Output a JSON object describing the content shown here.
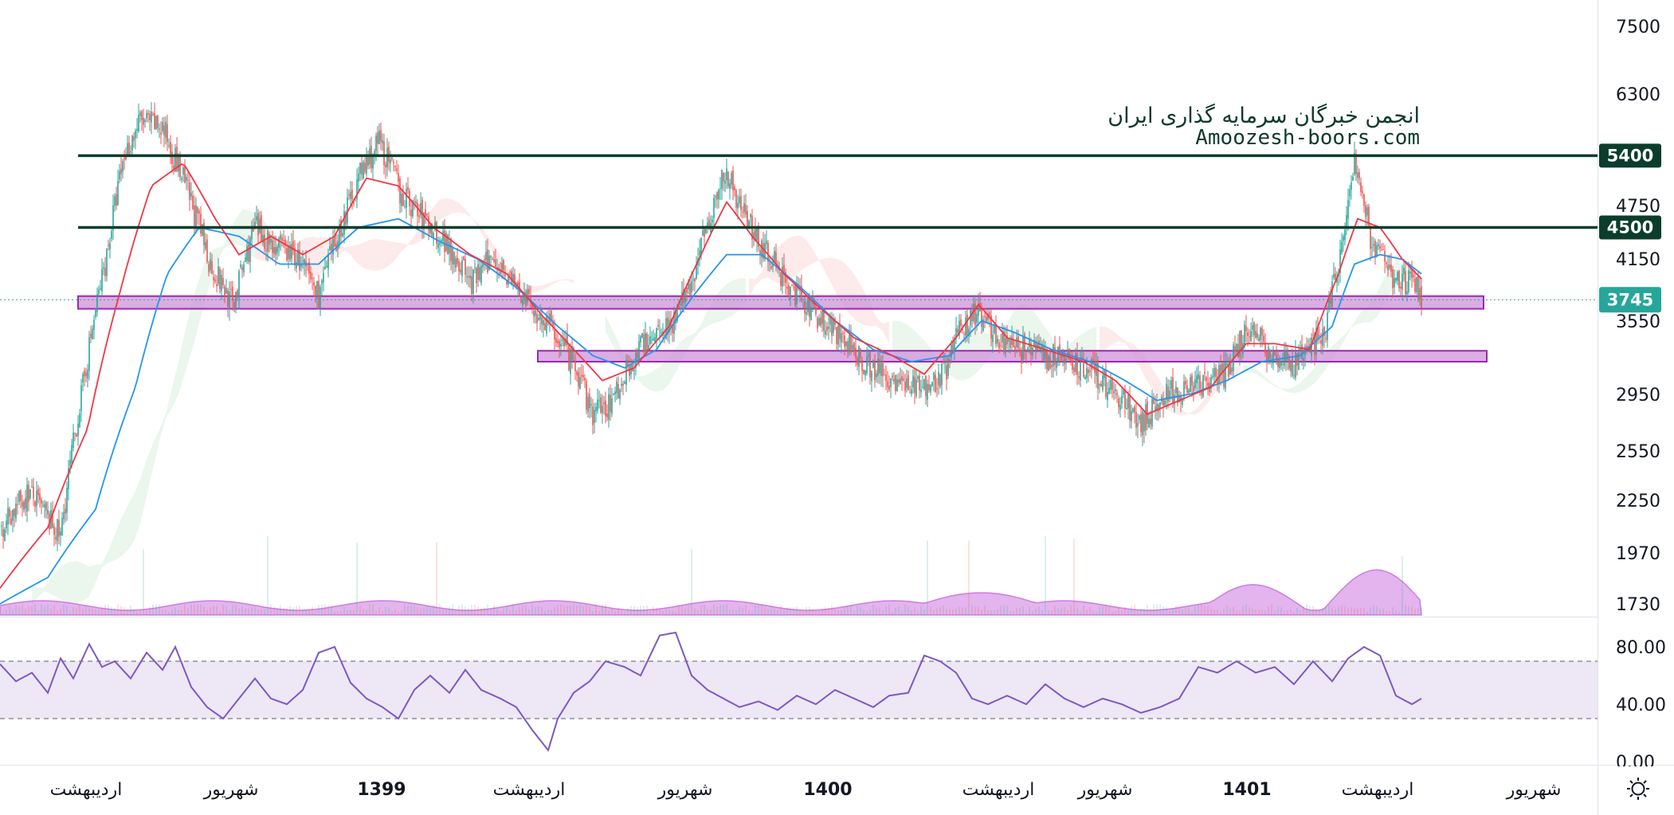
{
  "watermark": {
    "line1": "انجمن خبرگان سرمایه گذاری ایران",
    "line2": "Amoozesh-boors.com"
  },
  "colors": {
    "up": "#26a69a",
    "down": "#ef5350",
    "ma_fast": "#f23645",
    "ma_slow": "#2196f3",
    "resistance": "#0b3d2c",
    "zone_fill": "#ce93d8",
    "zone_border": "#9c27b0",
    "volume": "#c158d6",
    "rsi_line": "#7e57c2",
    "rsi_band": "#ede7f6",
    "last_price": "#26a69a"
  },
  "chart_data": [
    {
      "type": "candlestick",
      "scale": "log",
      "y_ticks": [
        "7500",
        "6300",
        "4750",
        "4150",
        "3550",
        "2950",
        "2550",
        "2250",
        "1970",
        "1730"
      ],
      "x_ticks": [
        {
          "label": "اردیبهشت",
          "bold": false
        },
        {
          "label": "شهریور",
          "bold": false
        },
        {
          "label": "1399",
          "bold": true
        },
        {
          "label": "اردیبهشت",
          "bold": false
        },
        {
          "label": "شهریور",
          "bold": false
        },
        {
          "label": "1400",
          "bold": true
        },
        {
          "label": "اردیبهشت",
          "bold": false
        },
        {
          "label": "شهریور",
          "bold": false
        },
        {
          "label": "1401",
          "bold": true
        },
        {
          "label": "اردیبهشت",
          "bold": false
        },
        {
          "label": "شهریور",
          "bold": false
        }
      ],
      "close_path": [
        [
          0,
          2100
        ],
        [
          18,
          2300
        ],
        [
          38,
          2050
        ],
        [
          52,
          3000
        ],
        [
          67,
          4200
        ],
        [
          78,
          5400
        ],
        [
          88,
          5900
        ],
        [
          102,
          5800
        ],
        [
          120,
          4800
        ],
        [
          132,
          4100
        ],
        [
          146,
          3700
        ],
        [
          160,
          4500
        ],
        [
          172,
          4300
        ],
        [
          185,
          4200
        ],
        [
          200,
          3800
        ],
        [
          212,
          4400
        ],
        [
          225,
          5100
        ],
        [
          238,
          5600
        ],
        [
          252,
          4900
        ],
        [
          266,
          4600
        ],
        [
          282,
          4300
        ],
        [
          296,
          3900
        ],
        [
          310,
          4200
        ],
        [
          324,
          3850
        ],
        [
          338,
          3600
        ],
        [
          350,
          3420
        ],
        [
          362,
          3100
        ],
        [
          372,
          2800
        ],
        [
          384,
          2900
        ],
        [
          396,
          3200
        ],
        [
          410,
          3450
        ],
        [
          422,
          3550
        ],
        [
          434,
          3900
        ],
        [
          446,
          4700
        ],
        [
          456,
          5200
        ],
        [
          466,
          4700
        ],
        [
          478,
          4300
        ],
        [
          490,
          4000
        ],
        [
          504,
          3700
        ],
        [
          518,
          3550
        ],
        [
          534,
          3300
        ],
        [
          548,
          3150
        ],
        [
          562,
          3050
        ],
        [
          578,
          3000
        ],
        [
          592,
          3100
        ],
        [
          604,
          3500
        ],
        [
          614,
          3650
        ],
        [
          626,
          3400
        ],
        [
          640,
          3300
        ],
        [
          656,
          3250
        ],
        [
          672,
          3200
        ],
        [
          688,
          3100
        ],
        [
          704,
          2900
        ],
        [
          716,
          2750
        ],
        [
          728,
          2900
        ],
        [
          742,
          3000
        ],
        [
          756,
          3000
        ],
        [
          770,
          3100
        ],
        [
          782,
          3500
        ],
        [
          796,
          3300
        ],
        [
          810,
          3150
        ],
        [
          822,
          3300
        ],
        [
          832,
          3500
        ],
        [
          842,
          4300
        ],
        [
          850,
          5300
        ],
        [
          860,
          4400
        ],
        [
          872,
          4000
        ],
        [
          884,
          3900
        ],
        [
          892,
          3800
        ]
      ],
      "ma_fast_path": [
        [
          0,
          1800
        ],
        [
          30,
          2100
        ],
        [
          55,
          2700
        ],
        [
          75,
          3800
        ],
        [
          95,
          5000
        ],
        [
          115,
          5300
        ],
        [
          135,
          4600
        ],
        [
          150,
          4200
        ],
        [
          170,
          4400
        ],
        [
          190,
          4200
        ],
        [
          210,
          4400
        ],
        [
          230,
          5100
        ],
        [
          250,
          5000
        ],
        [
          272,
          4500
        ],
        [
          295,
          4200
        ],
        [
          318,
          4000
        ],
        [
          340,
          3600
        ],
        [
          360,
          3300
        ],
        [
          378,
          3050
        ],
        [
          398,
          3150
        ],
        [
          420,
          3500
        ],
        [
          440,
          4200
        ],
        [
          456,
          4800
        ],
        [
          472,
          4400
        ],
        [
          492,
          4000
        ],
        [
          512,
          3700
        ],
        [
          536,
          3400
        ],
        [
          560,
          3250
        ],
        [
          580,
          3100
        ],
        [
          600,
          3400
        ],
        [
          614,
          3700
        ],
        [
          632,
          3400
        ],
        [
          656,
          3300
        ],
        [
          680,
          3200
        ],
        [
          700,
          3050
        ],
        [
          720,
          2800
        ],
        [
          740,
          2900
        ],
        [
          760,
          3000
        ],
        [
          782,
          3350
        ],
        [
          800,
          3350
        ],
        [
          822,
          3300
        ],
        [
          840,
          4000
        ],
        [
          852,
          4600
        ],
        [
          866,
          4500
        ],
        [
          880,
          4150
        ],
        [
          892,
          3950
        ]
      ],
      "ma_slow_path": [
        [
          0,
          1730
        ],
        [
          30,
          1850
        ],
        [
          60,
          2200
        ],
        [
          85,
          3000
        ],
        [
          105,
          4000
        ],
        [
          125,
          4500
        ],
        [
          150,
          4400
        ],
        [
          175,
          4100
        ],
        [
          200,
          4100
        ],
        [
          225,
          4500
        ],
        [
          250,
          4600
        ],
        [
          275,
          4350
        ],
        [
          300,
          4150
        ],
        [
          325,
          3850
        ],
        [
          350,
          3500
        ],
        [
          372,
          3250
        ],
        [
          392,
          3150
        ],
        [
          412,
          3300
        ],
        [
          436,
          3800
        ],
        [
          456,
          4200
        ],
        [
          478,
          4200
        ],
        [
          500,
          3900
        ],
        [
          524,
          3550
        ],
        [
          548,
          3300
        ],
        [
          572,
          3200
        ],
        [
          596,
          3250
        ],
        [
          616,
          3550
        ],
        [
          636,
          3450
        ],
        [
          660,
          3300
        ],
        [
          684,
          3200
        ],
        [
          706,
          3050
        ],
        [
          726,
          2900
        ],
        [
          748,
          2950
        ],
        [
          770,
          3050
        ],
        [
          792,
          3200
        ],
        [
          816,
          3250
        ],
        [
          836,
          3500
        ],
        [
          850,
          4100
        ],
        [
          866,
          4200
        ],
        [
          880,
          4150
        ],
        [
          892,
          4000
        ]
      ],
      "levels": [
        {
          "label": "5400",
          "value": 5400
        },
        {
          "label": "4500",
          "value": 4500
        }
      ],
      "zones": [
        {
          "from": 3660,
          "to": 3780
        },
        {
          "from": 3200,
          "to": 3290
        }
      ],
      "last_price": {
        "label": "3745",
        "value": 3745
      }
    },
    {
      "type": "line",
      "name": "RSI",
      "y_ticks": [
        "80.00",
        "40.00",
        "0.00"
      ],
      "band": [
        30,
        70
      ],
      "values_path": [
        [
          0,
          68
        ],
        [
          10,
          56
        ],
        [
          20,
          62
        ],
        [
          30,
          48
        ],
        [
          38,
          72
        ],
        [
          46,
          58
        ],
        [
          56,
          82
        ],
        [
          64,
          66
        ],
        [
          72,
          70
        ],
        [
          82,
          58
        ],
        [
          92,
          76
        ],
        [
          102,
          64
        ],
        [
          110,
          80
        ],
        [
          120,
          52
        ],
        [
          130,
          38
        ],
        [
          140,
          30
        ],
        [
          150,
          44
        ],
        [
          160,
          58
        ],
        [
          170,
          44
        ],
        [
          180,
          40
        ],
        [
          190,
          50
        ],
        [
          200,
          76
        ],
        [
          210,
          80
        ],
        [
          220,
          55
        ],
        [
          230,
          44
        ],
        [
          240,
          38
        ],
        [
          250,
          30
        ],
        [
          260,
          50
        ],
        [
          270,
          60
        ],
        [
          282,
          48
        ],
        [
          292,
          64
        ],
        [
          302,
          50
        ],
        [
          314,
          44
        ],
        [
          324,
          38
        ],
        [
          334,
          22
        ],
        [
          344,
          8
        ],
        [
          350,
          30
        ],
        [
          360,
          48
        ],
        [
          370,
          56
        ],
        [
          380,
          70
        ],
        [
          392,
          66
        ],
        [
          402,
          60
        ],
        [
          414,
          88
        ],
        [
          424,
          90
        ],
        [
          434,
          60
        ],
        [
          444,
          50
        ],
        [
          454,
          44
        ],
        [
          464,
          38
        ],
        [
          476,
          42
        ],
        [
          488,
          36
        ],
        [
          500,
          46
        ],
        [
          512,
          40
        ],
        [
          524,
          50
        ],
        [
          536,
          44
        ],
        [
          548,
          38
        ],
        [
          558,
          46
        ],
        [
          570,
          48
        ],
        [
          580,
          74
        ],
        [
          590,
          70
        ],
        [
          600,
          62
        ],
        [
          610,
          44
        ],
        [
          620,
          40
        ],
        [
          632,
          46
        ],
        [
          644,
          40
        ],
        [
          656,
          54
        ],
        [
          668,
          44
        ],
        [
          680,
          38
        ],
        [
          692,
          44
        ],
        [
          704,
          40
        ],
        [
          716,
          34
        ],
        [
          728,
          38
        ],
        [
          740,
          44
        ],
        [
          752,
          66
        ],
        [
          764,
          62
        ],
        [
          776,
          70
        ],
        [
          788,
          62
        ],
        [
          800,
          66
        ],
        [
          812,
          54
        ],
        [
          824,
          70
        ],
        [
          836,
          56
        ],
        [
          846,
          72
        ],
        [
          856,
          80
        ],
        [
          866,
          74
        ],
        [
          876,
          46
        ],
        [
          886,
          40
        ],
        [
          892,
          44
        ]
      ]
    }
  ]
}
